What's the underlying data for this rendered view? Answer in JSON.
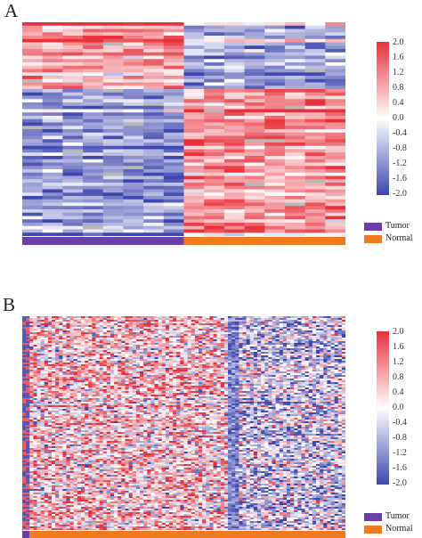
{
  "colors": {
    "tumor": "#6a3fa8",
    "normal": "#f07a1e",
    "low": "#3d47ae",
    "mid": "#ffffff",
    "high": "#e8313c",
    "na": "#b8b8b8"
  },
  "chart_data": [
    {
      "panel": "A",
      "type": "heatmap",
      "color_scale": {
        "ticks": [
          "2.0",
          "1.6",
          "1.2",
          "0.8",
          "0.4",
          "0.0",
          "-0.4",
          "-0.8",
          "-1.2",
          "-1.6",
          "-2.0"
        ],
        "min": -2.0,
        "max": 2.0
      },
      "legend": [
        "Tumor",
        "Normal"
      ],
      "annotation_track": {
        "groups": [
          "Tumor",
          "Normal"
        ],
        "counts": [
          8,
          8
        ]
      },
      "n_rows": 64,
      "clusters": [
        {
          "rows": 20,
          "tumor": 1.0,
          "normal": -0.9
        },
        {
          "rows": 24,
          "tumor": -1.1,
          "normal": 1.1
        },
        {
          "rows": 20,
          "tumor": -1.0,
          "normal": 1.0
        }
      ]
    },
    {
      "panel": "B",
      "type": "heatmap",
      "color_scale": {
        "ticks": [
          "2.0",
          "1.6",
          "1.2",
          "0.8",
          "0.4",
          "0.0",
          "-0.4",
          "-0.8",
          "-1.2",
          "-1.6",
          "-2.0"
        ],
        "min": -2.0,
        "max": 2.0
      },
      "legend": [
        "Tumor",
        "Normal"
      ],
      "annotation_track": {
        "groups": [
          "Tumor",
          "Normal"
        ],
        "counts": [
          2,
          86
        ]
      },
      "n_rows": 120,
      "n_cols": 88,
      "pattern": {
        "split_col": 56,
        "left_mean": 0.5,
        "right_mean": -0.5
      }
    }
  ]
}
